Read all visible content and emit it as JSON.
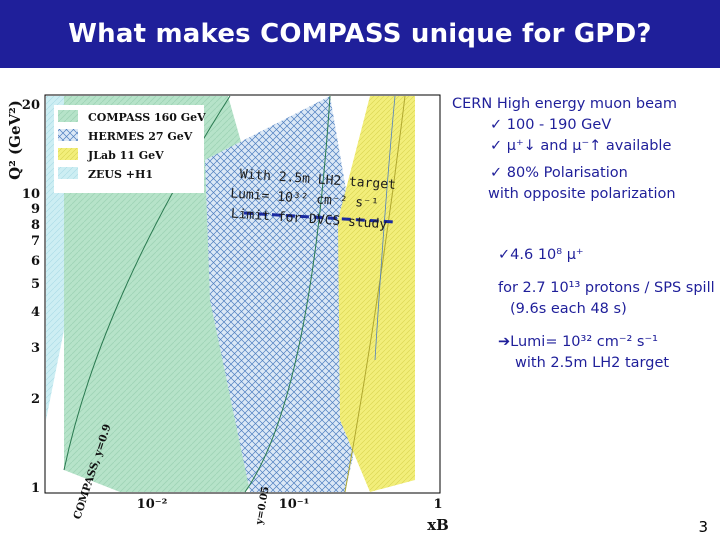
{
  "slide": {
    "title": "What makes COMPASS unique for GPD?",
    "page_number": "3"
  },
  "plot": {
    "y_axis_label": "Q² (GeV²)",
    "x_axis_label": "xB",
    "y_ticks": [
      "20",
      "10",
      "9",
      "8",
      "7",
      "6",
      "5",
      "4",
      "3",
      "2",
      "1"
    ],
    "x_ticks": [
      "10⁻²",
      "10⁻¹",
      "1"
    ],
    "legend": [
      {
        "label": "COMPASS 160 GeV",
        "color": "#b6e3c9"
      },
      {
        "label": "HERMES 27 GeV",
        "color": "#9ab7dc"
      },
      {
        "label": "JLab 11 GeV",
        "color": "#f2ee7a"
      },
      {
        "label": "ZEUS +H1",
        "color": "#c9edf3"
      }
    ],
    "curve_labels": [
      "COMPASS, y=0.9",
      "y=0.05"
    ],
    "annotation": {
      "line1": "With 2.5m LH2 target",
      "line2": "Lumi= 10³² cm⁻² s⁻¹",
      "line3": "Limit for DVCS study"
    }
  },
  "right_panel": {
    "beam_line": "CERN High energy muon beam",
    "energy": "✓ 100 - 190 GeV",
    "muons": "✓ μ⁺↓ and μ⁻↑ available",
    "polarisation": "✓ 80% Polarisation",
    "polarisation_sub": "with opposite polarization",
    "intensity": "✓4.6 10⁸ μ⁺",
    "protons": "for 2.7 10¹³ protons / SPS spill",
    "spill": "(9.6s each 48 s)",
    "lumi": "➔Lumi= 10³² cm⁻² s⁻¹",
    "target": "with 2.5m LH2 target"
  }
}
